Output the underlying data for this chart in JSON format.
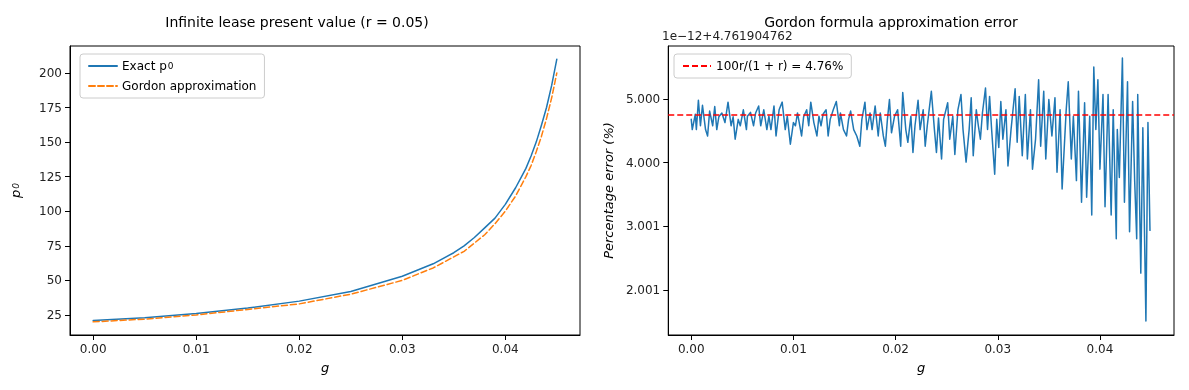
{
  "chart_data": [
    {
      "type": "line",
      "title": "Infinite lease present value (r = 0.05)",
      "xlabel": "g",
      "ylabel": "p$_{0}$",
      "legend": "top left",
      "grid": false,
      "xlim": [
        -0.00225,
        0.04725
      ],
      "xticks": [
        {
          "value": 0,
          "label": "0.00"
        },
        {
          "value": 0.01,
          "label": "0.01"
        },
        {
          "value": 0.02,
          "label": "0.02"
        },
        {
          "value": 0.03,
          "label": "0.03"
        },
        {
          "value": 0.04,
          "label": "0.04"
        }
      ],
      "ylim": [
        10.5,
        219.5
      ],
      "yticks": [
        25,
        50,
        75,
        100,
        125,
        150,
        175,
        200
      ],
      "x": [
        0,
        0.005,
        0.01,
        0.015,
        0.02,
        0.025,
        0.03,
        0.033,
        0.035,
        0.036,
        0.037,
        0.038,
        0.039,
        0.04,
        0.041,
        0.0415,
        0.042,
        0.0425,
        0.043,
        0.0435,
        0.044,
        0.0445,
        0.045
      ],
      "series": [
        {
          "name": "Exact p$_{0}$",
          "color": "#1f77b4",
          "line_style": "solid",
          "values": [
            21,
            23,
            26,
            30,
            35,
            42,
            53,
            62,
            70,
            75,
            81,
            88,
            95,
            105,
            117,
            124,
            131,
            140,
            150,
            162,
            175,
            191,
            210
          ]
        },
        {
          "name": "Gordon approximation",
          "color": "#ff7f0e",
          "line_style": "dashed",
          "values": [
            20,
            22,
            25,
            29,
            33,
            40,
            50,
            59,
            67,
            71,
            77,
            83,
            91,
            100,
            111,
            118,
            125,
            133,
            143,
            154,
            167,
            182,
            200
          ]
        }
      ]
    },
    {
      "type": "line",
      "title": "Gordon formula approximation error",
      "xlabel": "g",
      "ylabel": "Percentage error (%)",
      "legend": "top left",
      "grid": false,
      "annotations": [
        "1e−12+4.761904762"
      ],
      "xlim": [
        -0.00225,
        0.04725
      ],
      "xticks": [
        {
          "value": 0,
          "label": "0.00"
        },
        {
          "value": 0.01,
          "label": "0.01"
        },
        {
          "value": 0.02,
          "label": "0.02"
        },
        {
          "value": 0.03,
          "label": "0.03"
        },
        {
          "value": 0.04,
          "label": "0.04"
        }
      ],
      "ylim": [
        1.3,
        5.83
      ],
      "yticks": [
        {
          "value": 2.001,
          "label": "2.001"
        },
        {
          "value": 3.001,
          "label": "3.001"
        },
        {
          "value": 4,
          "label": "4.000"
        },
        {
          "value": 5,
          "label": "5.000"
        }
      ],
      "ref_lines": [
        {
          "axis": "y",
          "value": 4.76,
          "label": "100r/(1 + r) = 4.76%",
          "color": "#ff0000",
          "line_style": "dashed"
        }
      ],
      "series": [
        {
          "color": "#1f77b4",
          "line_style": "solid",
          "x": [
            0,
            0.0001,
            0.0004,
            0.0005,
            0.0007,
            0.0009,
            0.0011,
            0.0014,
            0.0016,
            0.0018,
            0.0021,
            0.0023,
            0.0025,
            0.0027,
            0.003,
            0.0033,
            0.0036,
            0.0039,
            0.0041,
            0.0043,
            0.0046,
            0.0048,
            0.0051,
            0.0054,
            0.0055,
            0.0058,
            0.0061,
            0.0063,
            0.0066,
            0.0068,
            0.0071,
            0.0074,
            0.0076,
            0.0078,
            0.0081,
            0.0083,
            0.0086,
            0.0089,
            0.0092,
            0.0094,
            0.0097,
            0.01,
            0.0102,
            0.0104,
            0.0108,
            0.011,
            0.0113,
            0.0115,
            0.0117,
            0.012,
            0.0123,
            0.0125,
            0.0127,
            0.0129,
            0.0132,
            0.0134,
            0.0136,
            0.0139,
            0.0142,
            0.0145,
            0.0146,
            0.0149,
            0.0152,
            0.0154,
            0.0156,
            0.0159,
            0.0162,
            0.0165,
            0.0167,
            0.017,
            0.0172,
            0.0175,
            0.0177,
            0.018,
            0.0183,
            0.0185,
            0.0188,
            0.019,
            0.0192,
            0.0194,
            0.0196,
            0.0199,
            0.0202,
            0.0205,
            0.0207,
            0.021,
            0.0212,
            0.0215,
            0.0217,
            0.0219,
            0.0222,
            0.0224,
            0.0227,
            0.0229,
            0.0231,
            0.0235,
            0.0238,
            0.024,
            0.0242,
            0.0245,
            0.0247,
            0.0251,
            0.0253,
            0.0256,
            0.0258,
            0.0261,
            0.0264,
            0.0266,
            0.0269,
            0.0272,
            0.0274,
            0.0276,
            0.0279,
            0.0281,
            0.0283,
            0.0285,
            0.0288,
            0.029,
            0.0292,
            0.0294,
            0.0297,
            0.0299,
            0.0301,
            0.0303,
            0.0305,
            0.0308,
            0.031,
            0.0313,
            0.0317,
            0.0319,
            0.0321,
            0.0324,
            0.0327,
            0.0329,
            0.0332,
            0.0334,
            0.0337,
            0.034,
            0.0342,
            0.0345,
            0.0347,
            0.035,
            0.0353,
            0.0356,
            0.0358,
            0.0361,
            0.0363,
            0.0367,
            0.0369,
            0.0372,
            0.0374,
            0.0377,
            0.0379,
            0.0382,
            0.0385,
            0.0387,
            0.039,
            0.0392,
            0.0394,
            0.0396,
            0.0398,
            0.04,
            0.0403,
            0.0405,
            0.0408,
            0.0411,
            0.0413,
            0.0416,
            0.0417,
            0.0419,
            0.0422,
            0.0424,
            0.0427,
            0.0429,
            0.0432,
            0.0434,
            0.0436,
            0.0437,
            0.044,
            0.0442,
            0.0445,
            0.0447,
            0.0449
          ],
          "values": [
            4.68,
            4.52,
            4.76,
            4.52,
            4.98,
            4.58,
            4.9,
            4.52,
            4.42,
            4.81,
            4.58,
            4.88,
            4.52,
            4.72,
            4.78,
            4.63,
            4.95,
            4.58,
            4.72,
            4.37,
            4.68,
            4.58,
            4.83,
            4.52,
            4.73,
            4.79,
            4.58,
            4.78,
            4.89,
            4.58,
            4.83,
            4.52,
            4.73,
            4.52,
            4.89,
            4.42,
            4.83,
            4.95,
            4.52,
            4.73,
            4.29,
            4.63,
            4.58,
            4.78,
            4.42,
            4.72,
            4.83,
            4.58,
            4.95,
            4.63,
            4.42,
            4.73,
            4.58,
            4.76,
            4.83,
            4.42,
            4.68,
            4.83,
            4.96,
            4.58,
            4.78,
            4.52,
            4.42,
            4.68,
            4.81,
            4.52,
            4.42,
            4.26,
            4.68,
            4.95,
            4.52,
            4.78,
            4.52,
            4.89,
            4.42,
            4.78,
            4.42,
            4.26,
            4.68,
            4.99,
            4.47,
            4.73,
            4.83,
            4.26,
            5.1,
            4.52,
            4.32,
            4.73,
            4.16,
            4.58,
            4.98,
            4.52,
            4.83,
            4.26,
            4.58,
            5.12,
            4.52,
            4.16,
            4.7,
            4.06,
            4.68,
            4.94,
            4.37,
            4.73,
            4.13,
            4.83,
            5.07,
            4.52,
            4.01,
            4.52,
            5.02,
            4.11,
            4.83,
            4.58,
            4.37,
            4.78,
            5.17,
            4.52,
            5.04,
            4.52,
            3.82,
            4.68,
            4.24,
            4.96,
            4.37,
            4.83,
            3.95,
            4.52,
            5.16,
            4.32,
            5.04,
            4.11,
            5.07,
            4.06,
            4.83,
            3.9,
            4.37,
            5.3,
            4.26,
            5.12,
            4.06,
            4.99,
            4.42,
            5.02,
            3.85,
            4.83,
            3.59,
            4.83,
            5.27,
            4.06,
            4.73,
            3.72,
            5.12,
            3.38,
            4.94,
            3.46,
            4.73,
            3.18,
            5.5,
            4.52,
            5.3,
            3.9,
            5.07,
            3.31,
            5.07,
            3.18,
            4.83,
            2.81,
            4.52,
            3.77,
            5.64,
            3.38,
            5.27,
            2.92,
            4.96,
            3.72,
            2.81,
            5.07,
            2.27,
            4.55,
            1.52,
            4.63,
            2.94
          ]
        }
      ]
    }
  ]
}
